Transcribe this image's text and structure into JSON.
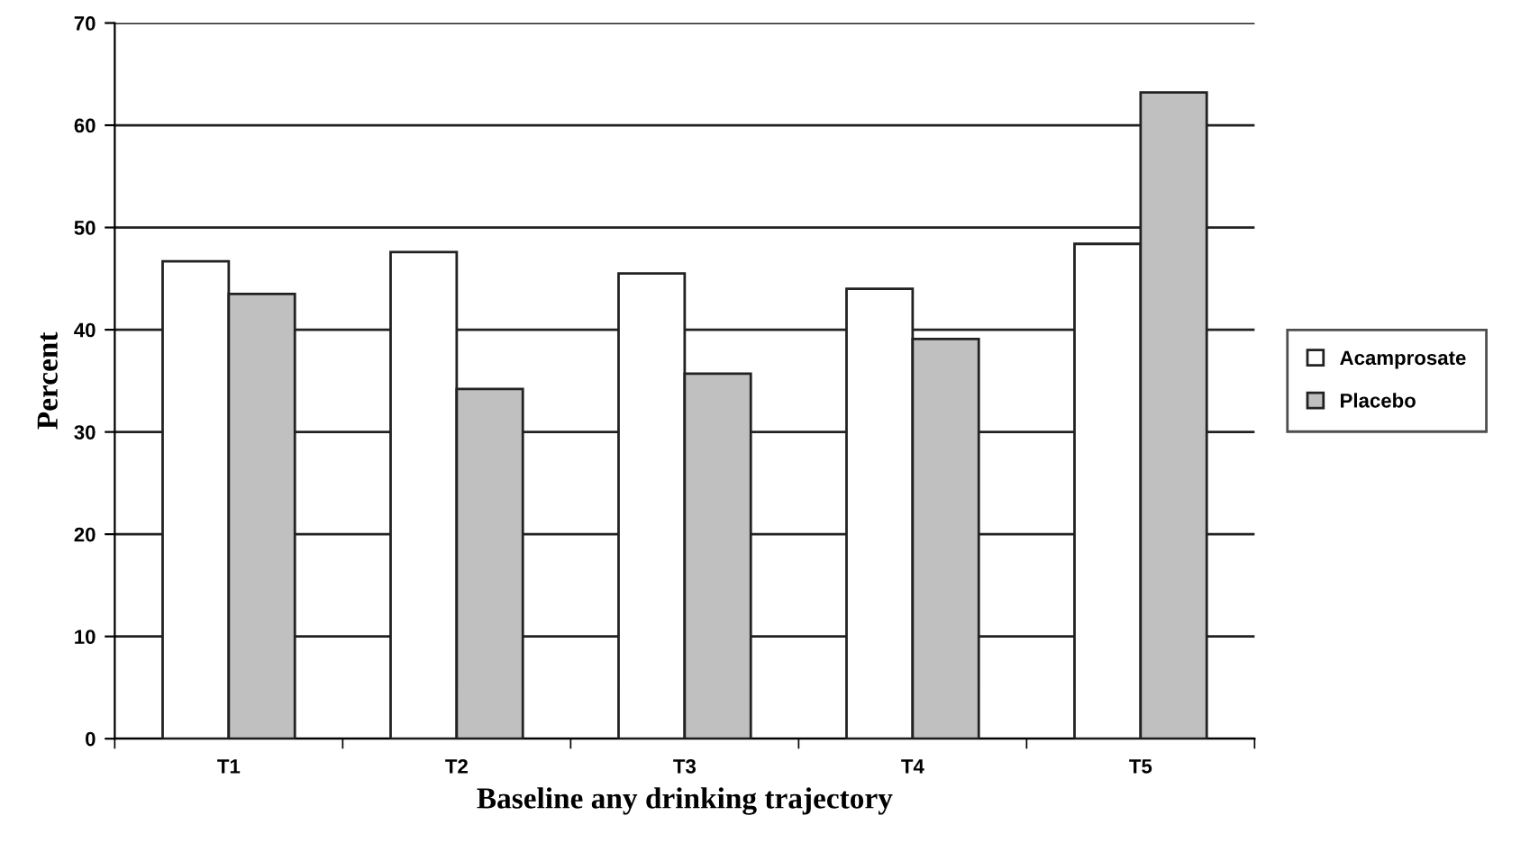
{
  "chart_data": {
    "type": "bar",
    "xlabel": "Baseline any drinking trajectory",
    "ylabel": "Percent",
    "categories": [
      "T1",
      "T2",
      "T3",
      "T4",
      "T5"
    ],
    "series": [
      {
        "name": "Acamprosate",
        "color": "#ffffff",
        "values": [
          46.7,
          47.6,
          45.5,
          44.0,
          48.4
        ]
      },
      {
        "name": "Placebo",
        "color": "#c0c0c0",
        "values": [
          43.5,
          34.2,
          35.7,
          39.1,
          63.2
        ]
      }
    ],
    "ylim": [
      0,
      70
    ],
    "yticks": [
      0,
      10,
      20,
      30,
      40,
      50,
      60,
      70
    ],
    "grid": "y",
    "legend": "right"
  }
}
